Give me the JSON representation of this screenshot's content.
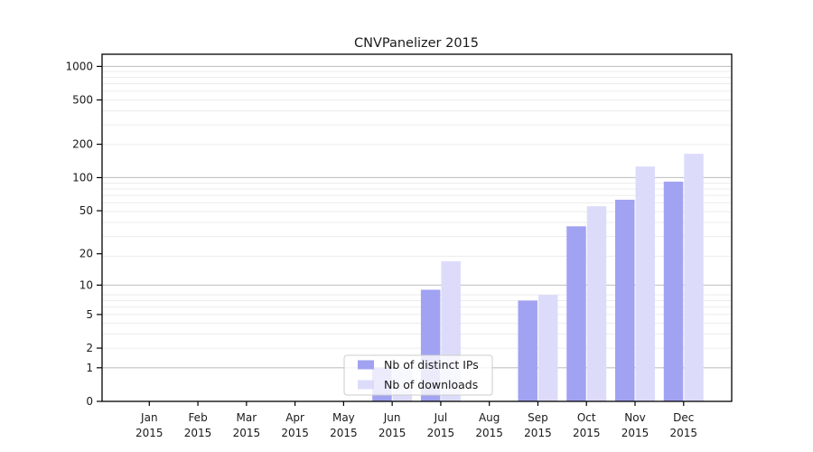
{
  "chart_data": {
    "type": "bar",
    "title": "CNVPanelizer 2015",
    "x_year_line": "2015",
    "categories": [
      "Jan",
      "Feb",
      "Mar",
      "Apr",
      "May",
      "Jun",
      "Jul",
      "Aug",
      "Sep",
      "Oct",
      "Nov",
      "Dec"
    ],
    "series": [
      {
        "name": "Nb of distinct IPs",
        "color": "#a2a2f2",
        "values": [
          0,
          0,
          0,
          0,
          0,
          1,
          9,
          0,
          7,
          36,
          63,
          92
        ]
      },
      {
        "name": "Nb of downloads",
        "color": "#dcdcfa",
        "values": [
          0,
          0,
          0,
          0,
          0,
          1,
          17,
          0,
          8,
          55,
          126,
          164
        ]
      }
    ],
    "y_axis": {
      "scale": "log10(1+x)",
      "tick_values": [
        0,
        1,
        2,
        5,
        10,
        20,
        50,
        100,
        200,
        500,
        1000
      ],
      "tick_labels": [
        "0",
        "1",
        "2",
        "5",
        "10",
        "20",
        "50",
        "100",
        "200",
        "500",
        "1000"
      ]
    },
    "grid": "horizontal",
    "legend": {
      "position": "inside-bottom-center"
    },
    "colors": {
      "spine": "#000000",
      "major_grid": "#c4c4c4",
      "minor_grid": "#ececec",
      "legend_border": "#cccccc"
    }
  }
}
